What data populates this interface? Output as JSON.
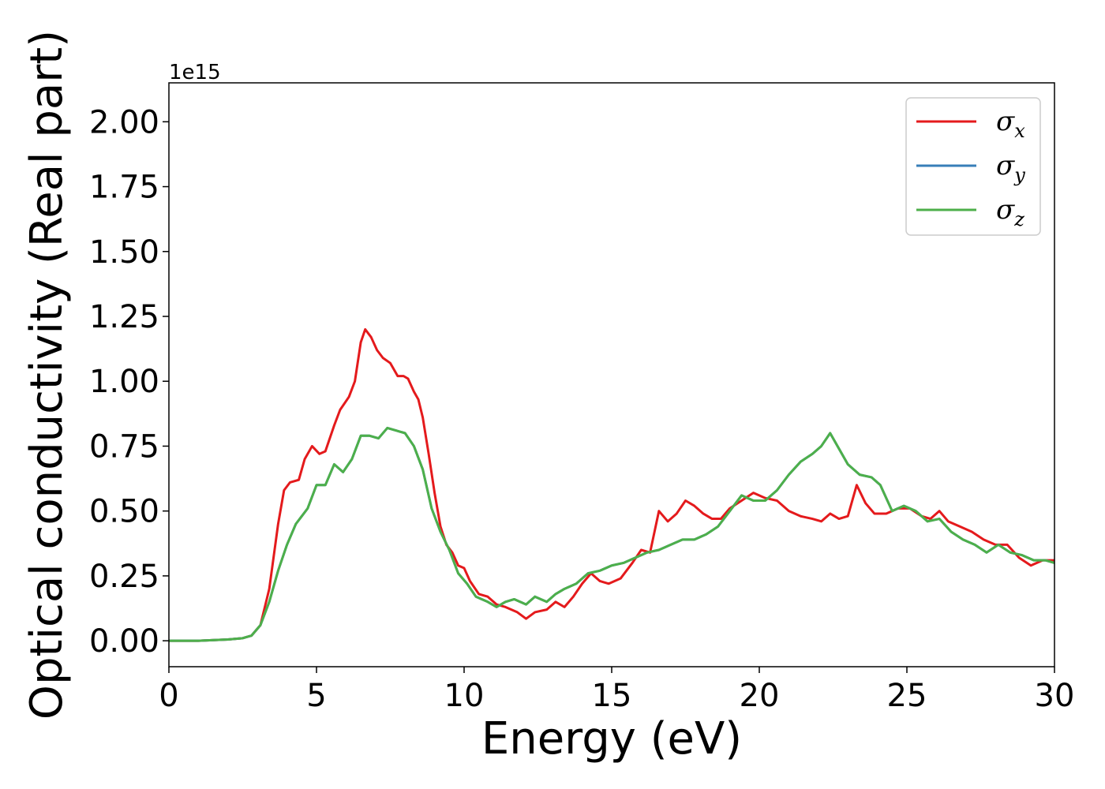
{
  "chart_data": {
    "type": "line",
    "xlabel": "Energy (eV)",
    "ylabel": "Optical conductivity (Real part)",
    "y_offset_label": "1e15",
    "xlim": [
      0,
      30
    ],
    "ylim": [
      -0.1,
      2.15
    ],
    "x_ticks": [
      0,
      5,
      10,
      15,
      20,
      25,
      30
    ],
    "x_tick_labels": [
      "0",
      "5",
      "10",
      "15",
      "20",
      "25",
      "30"
    ],
    "y_ticks": [
      0.0,
      0.25,
      0.5,
      0.75,
      1.0,
      1.25,
      1.5,
      1.75,
      2.0
    ],
    "y_tick_labels": [
      "0.00",
      "0.25",
      "0.50",
      "0.75",
      "1.00",
      "1.25",
      "1.50",
      "1.75",
      "2.00"
    ],
    "legend_position": "top-right",
    "grid": false,
    "series": [
      {
        "name": "σx",
        "symbol": "σ",
        "subscript": "x",
        "color": "#e41a1c",
        "points": [
          [
            0,
            0
          ],
          [
            1,
            0
          ],
          [
            2,
            0.005
          ],
          [
            2.5,
            0.01
          ],
          [
            2.8,
            0.02
          ],
          [
            3.1,
            0.06
          ],
          [
            3.4,
            0.2
          ],
          [
            3.7,
            0.45
          ],
          [
            3.9,
            0.58
          ],
          [
            4.1,
            0.61
          ],
          [
            4.4,
            0.62
          ],
          [
            4.6,
            0.7
          ],
          [
            4.85,
            0.75
          ],
          [
            5.1,
            0.72
          ],
          [
            5.3,
            0.73
          ],
          [
            5.6,
            0.83
          ],
          [
            5.8,
            0.89
          ],
          [
            6.1,
            0.94
          ],
          [
            6.3,
            1.0
          ],
          [
            6.5,
            1.15
          ],
          [
            6.65,
            1.2
          ],
          [
            6.85,
            1.17
          ],
          [
            7.05,
            1.12
          ],
          [
            7.25,
            1.09
          ],
          [
            7.5,
            1.07
          ],
          [
            7.75,
            1.02
          ],
          [
            7.95,
            1.02
          ],
          [
            8.1,
            1.01
          ],
          [
            8.3,
            0.96
          ],
          [
            8.45,
            0.93
          ],
          [
            8.6,
            0.86
          ],
          [
            8.8,
            0.72
          ],
          [
            9.0,
            0.57
          ],
          [
            9.2,
            0.44
          ],
          [
            9.4,
            0.37
          ],
          [
            9.6,
            0.34
          ],
          [
            9.8,
            0.29
          ],
          [
            10.0,
            0.28
          ],
          [
            10.2,
            0.23
          ],
          [
            10.5,
            0.18
          ],
          [
            10.8,
            0.17
          ],
          [
            11.1,
            0.14
          ],
          [
            11.4,
            0.13
          ],
          [
            11.8,
            0.11
          ],
          [
            12.1,
            0.085
          ],
          [
            12.4,
            0.11
          ],
          [
            12.8,
            0.12
          ],
          [
            13.1,
            0.15
          ],
          [
            13.4,
            0.13
          ],
          [
            13.7,
            0.17
          ],
          [
            14.0,
            0.22
          ],
          [
            14.3,
            0.26
          ],
          [
            14.6,
            0.23
          ],
          [
            14.9,
            0.22
          ],
          [
            15.3,
            0.24
          ],
          [
            15.7,
            0.3
          ],
          [
            16.0,
            0.35
          ],
          [
            16.3,
            0.34
          ],
          [
            16.6,
            0.5
          ],
          [
            16.9,
            0.46
          ],
          [
            17.2,
            0.49
          ],
          [
            17.5,
            0.54
          ],
          [
            17.8,
            0.52
          ],
          [
            18.1,
            0.49
          ],
          [
            18.4,
            0.47
          ],
          [
            18.7,
            0.47
          ],
          [
            19.0,
            0.51
          ],
          [
            19.4,
            0.54
          ],
          [
            19.8,
            0.57
          ],
          [
            20.2,
            0.55
          ],
          [
            20.6,
            0.54
          ],
          [
            21.0,
            0.5
          ],
          [
            21.4,
            0.48
          ],
          [
            21.8,
            0.47
          ],
          [
            22.1,
            0.46
          ],
          [
            22.4,
            0.49
          ],
          [
            22.7,
            0.47
          ],
          [
            23.0,
            0.48
          ],
          [
            23.3,
            0.6
          ],
          [
            23.6,
            0.53
          ],
          [
            23.9,
            0.49
          ],
          [
            24.3,
            0.49
          ],
          [
            24.7,
            0.51
          ],
          [
            25.1,
            0.51
          ],
          [
            25.5,
            0.48
          ],
          [
            25.8,
            0.47
          ],
          [
            26.1,
            0.5
          ],
          [
            26.4,
            0.46
          ],
          [
            26.8,
            0.44
          ],
          [
            27.2,
            0.42
          ],
          [
            27.6,
            0.39
          ],
          [
            28.0,
            0.37
          ],
          [
            28.4,
            0.37
          ],
          [
            28.8,
            0.32
          ],
          [
            29.2,
            0.29
          ],
          [
            29.6,
            0.31
          ],
          [
            30.0,
            0.31
          ]
        ]
      },
      {
        "name": "σy",
        "symbol": "σ",
        "subscript": "y",
        "color": "#377eb8",
        "points": [
          [
            0,
            0
          ],
          [
            1,
            0
          ],
          [
            2,
            0.005
          ],
          [
            2.5,
            0.01
          ],
          [
            2.8,
            0.02
          ],
          [
            3.1,
            0.06
          ],
          [
            3.4,
            0.15
          ],
          [
            3.7,
            0.27
          ],
          [
            4.0,
            0.37
          ],
          [
            4.3,
            0.45
          ],
          [
            4.7,
            0.51
          ],
          [
            5.0,
            0.6
          ],
          [
            5.3,
            0.6
          ],
          [
            5.6,
            0.68
          ],
          [
            5.9,
            0.65
          ],
          [
            6.2,
            0.7
          ],
          [
            6.5,
            0.79
          ],
          [
            6.8,
            0.79
          ],
          [
            7.1,
            0.78
          ],
          [
            7.4,
            0.82
          ],
          [
            7.7,
            0.81
          ],
          [
            8.0,
            0.8
          ],
          [
            8.3,
            0.75
          ],
          [
            8.6,
            0.66
          ],
          [
            8.9,
            0.51
          ],
          [
            9.2,
            0.42
          ],
          [
            9.5,
            0.35
          ],
          [
            9.8,
            0.26
          ],
          [
            10.1,
            0.22
          ],
          [
            10.4,
            0.17
          ],
          [
            10.8,
            0.15
          ],
          [
            11.1,
            0.13
          ],
          [
            11.4,
            0.15
          ],
          [
            11.7,
            0.16
          ],
          [
            12.1,
            0.14
          ],
          [
            12.4,
            0.17
          ],
          [
            12.8,
            0.15
          ],
          [
            13.1,
            0.18
          ],
          [
            13.4,
            0.2
          ],
          [
            13.8,
            0.22
          ],
          [
            14.2,
            0.26
          ],
          [
            14.6,
            0.27
          ],
          [
            15.0,
            0.29
          ],
          [
            15.4,
            0.3
          ],
          [
            15.8,
            0.32
          ],
          [
            16.2,
            0.34
          ],
          [
            16.6,
            0.35
          ],
          [
            17.0,
            0.37
          ],
          [
            17.4,
            0.39
          ],
          [
            17.8,
            0.39
          ],
          [
            18.2,
            0.41
          ],
          [
            18.6,
            0.44
          ],
          [
            19.0,
            0.5
          ],
          [
            19.4,
            0.56
          ],
          [
            19.8,
            0.54
          ],
          [
            20.2,
            0.54
          ],
          [
            20.6,
            0.58
          ],
          [
            21.0,
            0.64
          ],
          [
            21.4,
            0.69
          ],
          [
            21.8,
            0.72
          ],
          [
            22.1,
            0.75
          ],
          [
            22.4,
            0.8
          ],
          [
            22.7,
            0.74
          ],
          [
            23.0,
            0.68
          ],
          [
            23.4,
            0.64
          ],
          [
            23.8,
            0.63
          ],
          [
            24.1,
            0.6
          ],
          [
            24.5,
            0.5
          ],
          [
            24.9,
            0.52
          ],
          [
            25.3,
            0.5
          ],
          [
            25.7,
            0.46
          ],
          [
            26.1,
            0.47
          ],
          [
            26.5,
            0.42
          ],
          [
            26.9,
            0.39
          ],
          [
            27.3,
            0.37
          ],
          [
            27.7,
            0.34
          ],
          [
            28.1,
            0.37
          ],
          [
            28.5,
            0.34
          ],
          [
            28.9,
            0.33
          ],
          [
            29.3,
            0.31
          ],
          [
            29.7,
            0.31
          ],
          [
            30.0,
            0.3
          ]
        ]
      },
      {
        "name": "σz",
        "symbol": "σ",
        "subscript": "z",
        "color": "#4daf4a",
        "points": [
          [
            0,
            0
          ],
          [
            1,
            0
          ],
          [
            2,
            0.005
          ],
          [
            2.5,
            0.01
          ],
          [
            2.8,
            0.02
          ],
          [
            3.1,
            0.06
          ],
          [
            3.4,
            0.15
          ],
          [
            3.7,
            0.27
          ],
          [
            4.0,
            0.37
          ],
          [
            4.3,
            0.45
          ],
          [
            4.7,
            0.51
          ],
          [
            5.0,
            0.6
          ],
          [
            5.3,
            0.6
          ],
          [
            5.6,
            0.68
          ],
          [
            5.9,
            0.65
          ],
          [
            6.2,
            0.7
          ],
          [
            6.5,
            0.79
          ],
          [
            6.8,
            0.79
          ],
          [
            7.1,
            0.78
          ],
          [
            7.4,
            0.82
          ],
          [
            7.7,
            0.81
          ],
          [
            8.0,
            0.8
          ],
          [
            8.3,
            0.75
          ],
          [
            8.6,
            0.66
          ],
          [
            8.9,
            0.51
          ],
          [
            9.2,
            0.42
          ],
          [
            9.5,
            0.35
          ],
          [
            9.8,
            0.26
          ],
          [
            10.1,
            0.22
          ],
          [
            10.4,
            0.17
          ],
          [
            10.8,
            0.15
          ],
          [
            11.1,
            0.13
          ],
          [
            11.4,
            0.15
          ],
          [
            11.7,
            0.16
          ],
          [
            12.1,
            0.14
          ],
          [
            12.4,
            0.17
          ],
          [
            12.8,
            0.15
          ],
          [
            13.1,
            0.18
          ],
          [
            13.4,
            0.2
          ],
          [
            13.8,
            0.22
          ],
          [
            14.2,
            0.26
          ],
          [
            14.6,
            0.27
          ],
          [
            15.0,
            0.29
          ],
          [
            15.4,
            0.3
          ],
          [
            15.8,
            0.32
          ],
          [
            16.2,
            0.34
          ],
          [
            16.6,
            0.35
          ],
          [
            17.0,
            0.37
          ],
          [
            17.4,
            0.39
          ],
          [
            17.8,
            0.39
          ],
          [
            18.2,
            0.41
          ],
          [
            18.6,
            0.44
          ],
          [
            19.0,
            0.5
          ],
          [
            19.4,
            0.56
          ],
          [
            19.8,
            0.54
          ],
          [
            20.2,
            0.54
          ],
          [
            20.6,
            0.58
          ],
          [
            21.0,
            0.64
          ],
          [
            21.4,
            0.69
          ],
          [
            21.8,
            0.72
          ],
          [
            22.1,
            0.75
          ],
          [
            22.4,
            0.8
          ],
          [
            22.7,
            0.74
          ],
          [
            23.0,
            0.68
          ],
          [
            23.4,
            0.64
          ],
          [
            23.8,
            0.63
          ],
          [
            24.1,
            0.6
          ],
          [
            24.5,
            0.5
          ],
          [
            24.9,
            0.52
          ],
          [
            25.3,
            0.5
          ],
          [
            25.7,
            0.46
          ],
          [
            26.1,
            0.47
          ],
          [
            26.5,
            0.42
          ],
          [
            26.9,
            0.39
          ],
          [
            27.3,
            0.37
          ],
          [
            27.7,
            0.34
          ],
          [
            28.1,
            0.37
          ],
          [
            28.5,
            0.34
          ],
          [
            28.9,
            0.33
          ],
          [
            29.3,
            0.31
          ],
          [
            29.7,
            0.31
          ],
          [
            30.0,
            0.3
          ]
        ]
      }
    ]
  }
}
